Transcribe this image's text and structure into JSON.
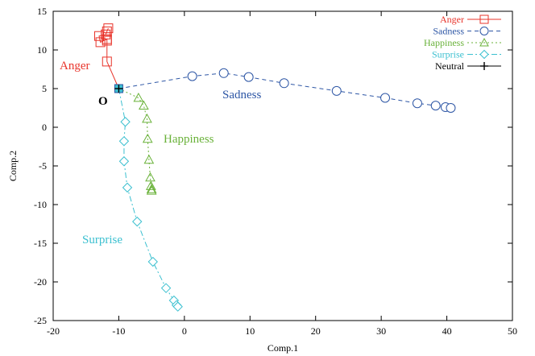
{
  "chart_data": {
    "type": "line",
    "title": "",
    "xlabel": "Comp.1",
    "ylabel": "Comp.2",
    "xlim": [
      -20,
      50
    ],
    "ylim": [
      -25,
      15
    ],
    "x_ticks": [
      -20,
      -10,
      0,
      10,
      20,
      30,
      40,
      50
    ],
    "y_ticks": [
      -25,
      -20,
      -15,
      -10,
      -5,
      0,
      5,
      10,
      15
    ],
    "grid": false,
    "legend_position": "top-right",
    "origin_label": "O",
    "series": [
      {
        "name": "Anger",
        "color": "#e8332a",
        "marker": "square",
        "line": "solid",
        "annotation": "Anger",
        "x": [
          -10,
          -11.8,
          -11.8,
          -11.8,
          -12.8,
          -13,
          -12,
          -11.8,
          -11.6
        ],
        "y": [
          5,
          8.5,
          11.2,
          11.4,
          11,
          11.8,
          12,
          12.4,
          12.8
        ]
      },
      {
        "name": "Sadness",
        "color": "#2d56a5",
        "marker": "circle",
        "line": "dashed",
        "annotation": "Sadness",
        "x": [
          -10,
          1.2,
          6,
          9.8,
          15.2,
          23.2,
          30.6,
          35.5,
          38.3,
          39.8,
          40.6
        ],
        "y": [
          5,
          6.6,
          7,
          6.5,
          5.7,
          4.7,
          3.8,
          3.1,
          2.8,
          2.6,
          2.5
        ]
      },
      {
        "name": "Happiness",
        "color": "#6ab23a",
        "marker": "triangle",
        "line": "dotted",
        "annotation": "Happiness",
        "x": [
          -10,
          -7,
          -6.2,
          -5.7,
          -5.6,
          -5.4,
          -5.2,
          -5.1,
          -5.0,
          -5.0
        ],
        "y": [
          5,
          3.8,
          2.8,
          1.1,
          -1.5,
          -4.2,
          -6.5,
          -7.6,
          -8,
          -8.2
        ]
      },
      {
        "name": "Surprise",
        "color": "#3cc0d0",
        "marker": "diamond",
        "line": "dashdot",
        "annotation": "Surprise",
        "x": [
          -10,
          -9,
          -9.2,
          -9.2,
          -8.7,
          -7.2,
          -4.8,
          -2.8,
          -1.6,
          -1.2,
          -1.0
        ],
        "y": [
          5,
          0.7,
          -1.8,
          -4.4,
          -7.8,
          -12.2,
          -17.4,
          -20.8,
          -22.4,
          -23,
          -23.2
        ]
      },
      {
        "name": "Neutral",
        "color": "#000000",
        "marker": "plus",
        "line": "solid",
        "x": [
          -10
        ],
        "y": [
          5
        ]
      }
    ]
  }
}
